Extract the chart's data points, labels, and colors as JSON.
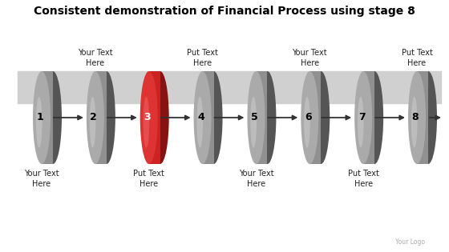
{
  "title": "Consistent demonstration of Financial Process using stage 8",
  "title_fontsize": 10,
  "num_stages": 8,
  "highlighted_stage": 3,
  "stage_colors": [
    "#909090",
    "#909090",
    "#cc2222",
    "#909090",
    "#909090",
    "#909090",
    "#909090",
    "#909090"
  ],
  "stage_edge_colors": [
    "#555555",
    "#555555",
    "#991111",
    "#555555",
    "#555555",
    "#555555",
    "#555555",
    "#555555"
  ],
  "stage_labels": [
    "1",
    "2",
    "3",
    "4",
    "5",
    "6",
    "7",
    "8"
  ],
  "top_labels": [
    {
      "stage": 1,
      "text": "Your Text\nHere"
    },
    {
      "stage": 3,
      "text": "Put Text\nHere"
    },
    {
      "stage": 5,
      "text": "Your Text\nHere"
    },
    {
      "stage": 7,
      "text": "Put Text\nHere"
    }
  ],
  "bottom_labels": [
    {
      "stage": 2,
      "text": "Your Text\nHere"
    },
    {
      "stage": 4,
      "text": "Put Text\nHere"
    },
    {
      "stage": 6,
      "text": "Your Text\nHere"
    },
    {
      "stage": 8,
      "text": "Put Text\nHere"
    }
  ],
  "bg_color": "#ffffff",
  "shelf_color": "#d0d0d0",
  "logo_text": "Your Logo",
  "arrow_color": "#333333"
}
